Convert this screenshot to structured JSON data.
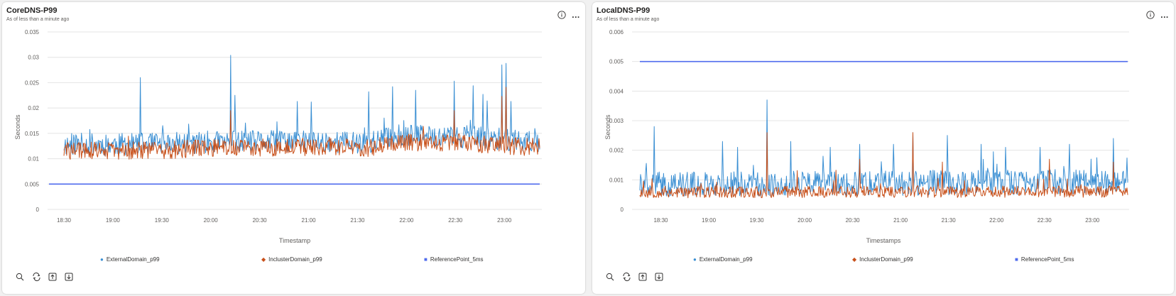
{
  "panels": [
    {
      "title": "CoreDNS-P99",
      "subtitle": "As of less than a minute ago",
      "more_label": "...",
      "legend": [
        {
          "label": "ExternalDomain_p99",
          "marker": "●"
        },
        {
          "label": "InclusterDomain_p99",
          "marker": "◆"
        },
        {
          "label": "ReferencePoint_5ms",
          "marker": "■"
        }
      ]
    },
    {
      "title": "LocalDNS-P99",
      "subtitle": "As of less than a minute ago",
      "more_label": "...",
      "legend": [
        {
          "label": "ExternalDomain_p99",
          "marker": "●"
        },
        {
          "label": "InclusterDomain_p99",
          "marker": "◆"
        },
        {
          "label": "ReferencePoint_5ms",
          "marker": "■"
        }
      ]
    }
  ],
  "chart_data": [
    {
      "type": "line",
      "title": "CoreDNS-P99",
      "xlabel": "Timestamp",
      "ylabel": "Seconds",
      "x_ticks": [
        "18:30",
        "19:00",
        "19:30",
        "20:00",
        "20:30",
        "21:00",
        "21:30",
        "22:00",
        "22:30",
        "23:00"
      ],
      "x_range": [
        "18:20",
        "23:23"
      ],
      "ylim": [
        0,
        0.035
      ],
      "y_ticks": [
        "0",
        "0.005",
        "0.01",
        "0.015",
        "0.02",
        "0.025",
        "0.03",
        "0.035"
      ],
      "grid": true,
      "legend_position": "bottom",
      "colors": {
        "external": "#3a8fd3",
        "incluster": "#c8501a",
        "reference": "#4f6bed"
      },
      "series": [
        {
          "name": "ExternalDomain_p99",
          "color": "#3a8fd3",
          "base": [
            [
              0,
              0.0128
            ],
            [
              0.2,
              0.0129
            ],
            [
              0.3,
              0.0133
            ],
            [
              0.45,
              0.0134
            ],
            [
              0.55,
              0.0134
            ],
            [
              0.64,
              0.0131
            ],
            [
              0.7,
              0.0146
            ],
            [
              0.85,
              0.0143
            ],
            [
              1,
              0.0133
            ]
          ],
          "noise": 0.0022,
          "spike_prob": 0.05,
          "spike_amp": 0.0032,
          "seed": 11,
          "spikes": [
            [
              0.16,
              0.026
            ],
            [
              0.35,
              0.0304
            ],
            [
              0.36,
              0.0225
            ],
            [
              0.49,
              0.0213
            ],
            [
              0.52,
              0.0212
            ],
            [
              0.64,
              0.0232
            ],
            [
              0.69,
              0.0242
            ],
            [
              0.74,
              0.0235
            ],
            [
              0.82,
              0.0253
            ],
            [
              0.86,
              0.0244
            ],
            [
              0.88,
              0.0227
            ],
            [
              0.89,
              0.0214
            ],
            [
              0.92,
              0.0285
            ],
            [
              0.93,
              0.0288
            ],
            [
              0.94,
              0.0213
            ]
          ]
        },
        {
          "name": "InclusterDomain_p99",
          "color": "#c8501a",
          "base": [
            [
              0,
              0.0115
            ],
            [
              0.2,
              0.0117
            ],
            [
              0.3,
              0.0121
            ],
            [
              0.45,
              0.0123
            ],
            [
              0.55,
              0.0123
            ],
            [
              0.64,
              0.0121
            ],
            [
              0.7,
              0.0134
            ],
            [
              0.85,
              0.0131
            ],
            [
              1,
              0.0122
            ]
          ],
          "noise": 0.0018,
          "spike_prob": 0.03,
          "spike_amp": 0.0024,
          "seed": 29,
          "spikes": [
            [
              0.35,
              0.0195
            ],
            [
              0.82,
              0.0195
            ],
            [
              0.92,
              0.0223
            ],
            [
              0.93,
              0.0241
            ]
          ]
        },
        {
          "name": "ReferencePoint_5ms",
          "color": "#4f6bed",
          "constant": 0.005
        }
      ]
    },
    {
      "type": "line",
      "title": "LocalDNS-P99",
      "xlabel": "Timestamps",
      "ylabel": "Seconds",
      "x_ticks": [
        "18:30",
        "19:00",
        "19:30",
        "20:00",
        "20:30",
        "21:00",
        "21:30",
        "22:00",
        "22:30",
        "23:00"
      ],
      "x_range": [
        "18:12",
        "23:23"
      ],
      "ylim": [
        0,
        0.006
      ],
      "y_ticks": [
        "0",
        "0.001",
        "0.002",
        "0.003",
        "0.004",
        "0.005",
        "0.006"
      ],
      "grid": true,
      "legend_position": "bottom",
      "colors": {
        "external": "#3a8fd3",
        "incluster": "#c8501a",
        "reference": "#4f6bed"
      },
      "series": [
        {
          "name": "ExternalDomain_p99",
          "color": "#3a8fd3",
          "base": [
            [
              0,
              0.00085
            ],
            [
              0.5,
              0.00088
            ],
            [
              1,
              0.00095
            ]
          ],
          "noise": 0.00042,
          "spike_prob": 0.07,
          "spike_amp": 0.0007,
          "seed": 41,
          "spikes": [
            [
              0.03,
              0.0028
            ],
            [
              0.17,
              0.0023
            ],
            [
              0.2,
              0.0021
            ],
            [
              0.26,
              0.0037
            ],
            [
              0.31,
              0.0023
            ],
            [
              0.39,
              0.0021
            ],
            [
              0.45,
              0.0022
            ],
            [
              0.52,
              0.0022
            ],
            [
              0.56,
              0.0026
            ],
            [
              0.63,
              0.0025
            ],
            [
              0.7,
              0.0022
            ],
            [
              0.75,
              0.0021
            ],
            [
              0.82,
              0.0021
            ],
            [
              0.88,
              0.0022
            ],
            [
              0.97,
              0.0024
            ]
          ]
        },
        {
          "name": "InclusterDomain_p99",
          "color": "#c8501a",
          "base": [
            [
              0,
              0.00058
            ],
            [
              0.5,
              0.0006
            ],
            [
              1,
              0.0006
            ]
          ],
          "noise": 0.0002,
          "spike_prob": 0.04,
          "spike_amp": 0.0006,
          "seed": 53,
          "spikes": [
            [
              0.26,
              0.0026
            ],
            [
              0.45,
              0.0017
            ],
            [
              0.56,
              0.0026
            ],
            [
              0.62,
              0.0016
            ],
            [
              0.84,
              0.0017
            ],
            [
              0.97,
              0.0016
            ]
          ]
        },
        {
          "name": "ReferencePoint_5ms",
          "color": "#4f6bed",
          "constant": 0.005
        }
      ]
    }
  ]
}
